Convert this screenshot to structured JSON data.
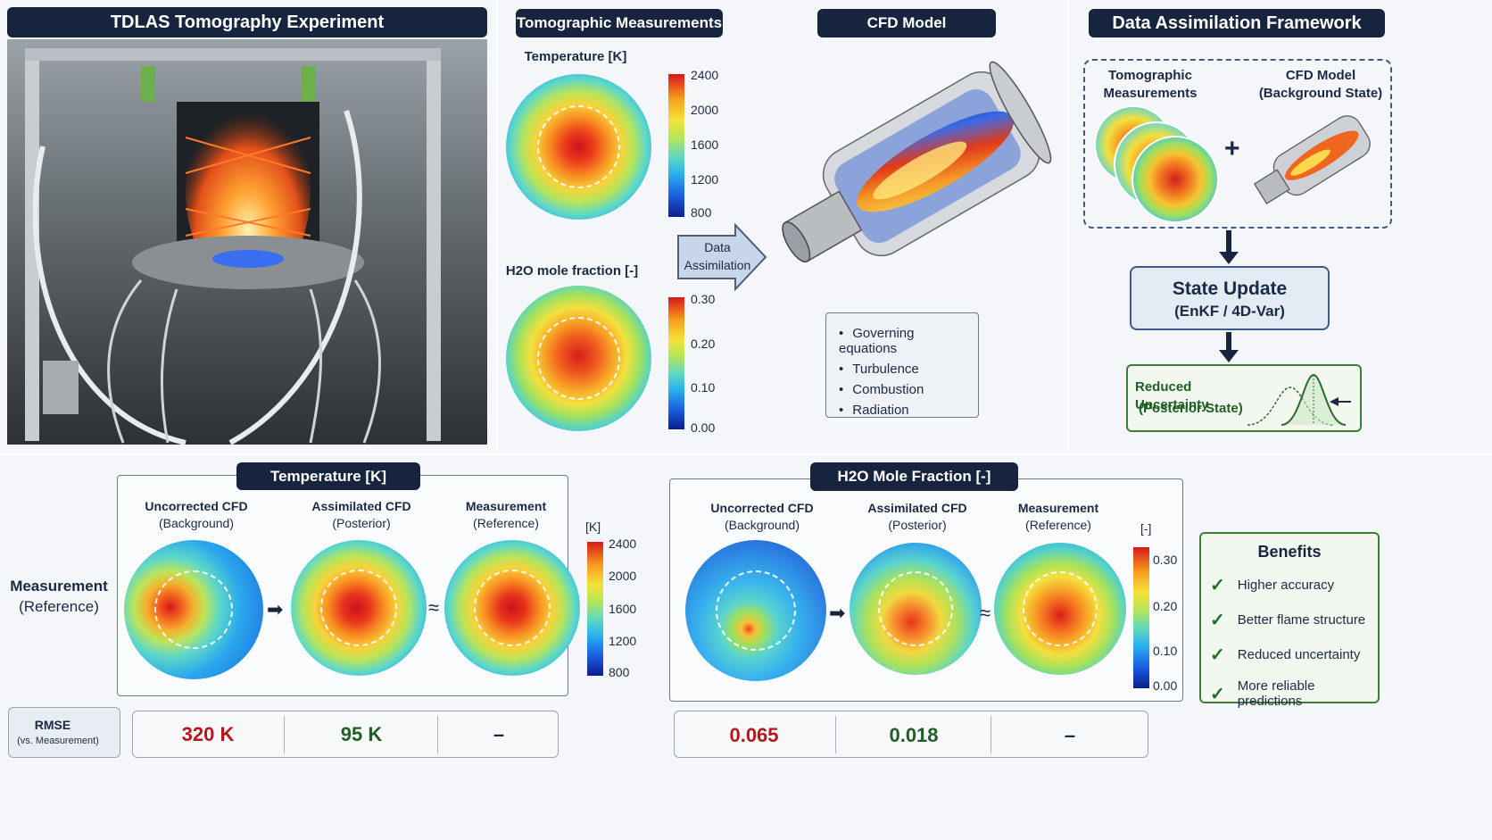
{
  "panel1": {
    "title": "TDLAS Tomography Experiment"
  },
  "panel2": {
    "title_meas": "Tomographic Measurements",
    "title_cfd": "CFD Model",
    "temp_label": "Temperature [K]",
    "h2o_label": "H2O mole fraction [-]",
    "temp_ticks": [
      "2400",
      "2000",
      "1600",
      "1200",
      "800"
    ],
    "h2o_ticks": [
      "0.30",
      "0.20",
      "0.10",
      "0.00"
    ],
    "arrow_label_1": "Data",
    "arrow_label_2": "Assimilation",
    "cfd_items": [
      "Governing equations",
      "Turbulence",
      "Combustion",
      "Radiation"
    ]
  },
  "panel3": {
    "title": "Data Assimilation Framework",
    "meas_label_1": "Tomographic",
    "meas_label_2": "Measurements",
    "cfd_label_1": "CFD Model",
    "cfd_label_2": "(Background State)",
    "plus": "+",
    "update_1": "State Update",
    "update_2": "(EnKF / 4D-Var)",
    "result_1": "Reduced Uncertainty",
    "result_2": "(Posterior State)"
  },
  "bottom": {
    "row_label_1": "Measurement",
    "row_label_2": "(Reference)",
    "temp_title": "Temperature [K]",
    "h2o_title": "H2O Mole Fraction [-]",
    "col1_1": "Uncorrected CFD",
    "col1_2": "(Background)",
    "col2_1": "Assimilated CFD",
    "col2_2": "(Posterior)",
    "col3_1": "Measurement",
    "col3_2": "(Reference)",
    "temp_unit": "[K]",
    "h2o_unit": "[-]",
    "temp_ticks": [
      "2400",
      "2000",
      "1600",
      "1200",
      "800"
    ],
    "h2o_ticks": [
      "0.30",
      "0.20",
      "0.10",
      "0.00"
    ],
    "approx": "≈",
    "rmse_1": "RMSE",
    "rmse_2": "(vs. Measurement)",
    "temp_rmse": [
      "320 K",
      "95 K",
      "–"
    ],
    "h2o_rmse": [
      "0.065",
      "0.018",
      "–"
    ],
    "benefits_title": "Benefits",
    "benefits": [
      "Higher accuracy",
      "Better flame structure",
      "Reduced uncertainty",
      "More reliable predictions"
    ]
  },
  "colors": {
    "navy": "#16243d",
    "red_value": "#b3181a",
    "green_value": "#1f5e24",
    "background": "#f4f6f9"
  }
}
